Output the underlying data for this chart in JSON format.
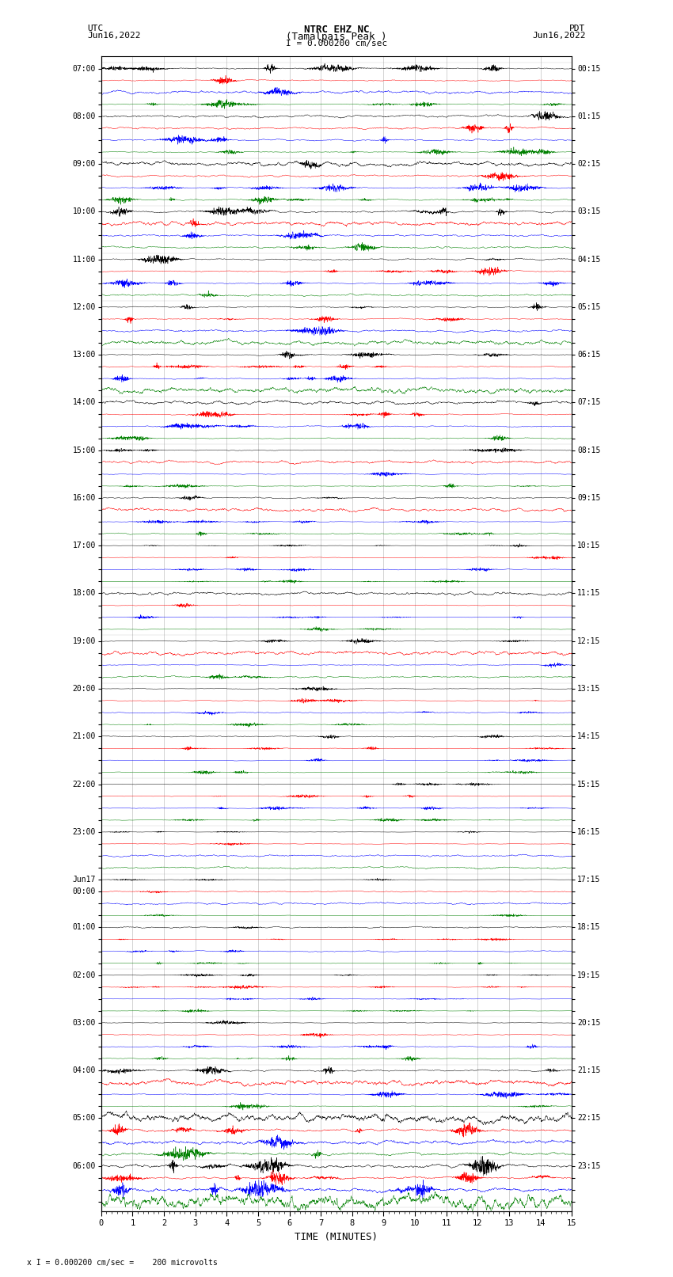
{
  "title_line1": "NTRC EHZ NC",
  "title_line2": "(Tamalpais Peak )",
  "title_line3": "I = 0.000200 cm/sec",
  "left_label_top": "UTC",
  "left_label_date": "Jun16,2022",
  "right_label_top": "PDT",
  "right_label_date": "Jun16,2022",
  "xlabel": "TIME (MINUTES)",
  "footer": "x I = 0.000200 cm/sec =    200 microvolts",
  "xlim": [
    0,
    15
  ],
  "xticks": [
    0,
    1,
    2,
    3,
    4,
    5,
    6,
    7,
    8,
    9,
    10,
    11,
    12,
    13,
    14,
    15
  ],
  "colors": [
    "black",
    "red",
    "blue",
    "green"
  ],
  "num_traces": 96,
  "background_color": "white",
  "left_times_utc": [
    "07:00",
    "",
    "",
    "",
    "08:00",
    "",
    "",
    "",
    "09:00",
    "",
    "",
    "",
    "10:00",
    "",
    "",
    "",
    "11:00",
    "",
    "",
    "",
    "12:00",
    "",
    "",
    "",
    "13:00",
    "",
    "",
    "",
    "14:00",
    "",
    "",
    "",
    "15:00",
    "",
    "",
    "",
    "16:00",
    "",
    "",
    "",
    "17:00",
    "",
    "",
    "",
    "18:00",
    "",
    "",
    "",
    "19:00",
    "",
    "",
    "",
    "20:00",
    "",
    "",
    "",
    "21:00",
    "",
    "",
    "",
    "22:00",
    "",
    "",
    "",
    "23:00",
    "",
    "",
    "",
    "Jun17",
    "00:00",
    "",
    "",
    "01:00",
    "",
    "",
    "",
    "02:00",
    "",
    "",
    "",
    "03:00",
    "",
    "",
    "",
    "04:00",
    "",
    "",
    "",
    "05:00",
    "",
    "",
    "",
    "06:00",
    "",
    "",
    ""
  ],
  "right_times_pdt": [
    "00:15",
    "",
    "",
    "",
    "01:15",
    "",
    "",
    "",
    "02:15",
    "",
    "",
    "",
    "03:15",
    "",
    "",
    "",
    "04:15",
    "",
    "",
    "",
    "05:15",
    "",
    "",
    "",
    "06:15",
    "",
    "",
    "",
    "07:15",
    "",
    "",
    "",
    "08:15",
    "",
    "",
    "",
    "09:15",
    "",
    "",
    "",
    "10:15",
    "",
    "",
    "",
    "11:15",
    "",
    "",
    "",
    "12:15",
    "",
    "",
    "",
    "13:15",
    "",
    "",
    "",
    "14:15",
    "",
    "",
    "",
    "15:15",
    "",
    "",
    "",
    "16:15",
    "",
    "",
    "",
    "17:15",
    "",
    "",
    "",
    "18:15",
    "",
    "",
    "",
    "19:15",
    "",
    "",
    "",
    "20:15",
    "",
    "",
    "",
    "21:15",
    "",
    "",
    "",
    "22:15",
    "",
    "",
    "",
    "23:15",
    "",
    "",
    ""
  ],
  "amp_scales": [
    1.0,
    1.0,
    1.0,
    1.0,
    1.0,
    1.0,
    1.0,
    1.0,
    1.0,
    1.0,
    1.0,
    1.0,
    1.0,
    1.0,
    1.0,
    1.0,
    0.9,
    0.9,
    0.9,
    0.9,
    0.9,
    0.9,
    0.9,
    0.9,
    0.8,
    0.8,
    0.8,
    0.8,
    0.7,
    0.7,
    0.7,
    0.7,
    0.5,
    0.5,
    0.5,
    0.5,
    0.5,
    0.5,
    0.5,
    0.5,
    0.4,
    0.4,
    0.4,
    0.4,
    0.5,
    0.5,
    0.5,
    0.5,
    0.6,
    0.6,
    0.6,
    0.6,
    0.5,
    0.5,
    0.5,
    0.5,
    0.4,
    0.4,
    0.4,
    0.4,
    0.4,
    0.4,
    0.4,
    0.4,
    0.3,
    0.3,
    0.3,
    0.3,
    0.3,
    0.3,
    0.3,
    0.3,
    0.3,
    0.3,
    0.3,
    0.3,
    0.4,
    0.4,
    0.4,
    0.4,
    0.6,
    0.6,
    0.6,
    0.6,
    0.8,
    0.8,
    0.8,
    0.8,
    1.5,
    1.5,
    1.5,
    1.5,
    2.0,
    2.0,
    2.0,
    2.0
  ]
}
